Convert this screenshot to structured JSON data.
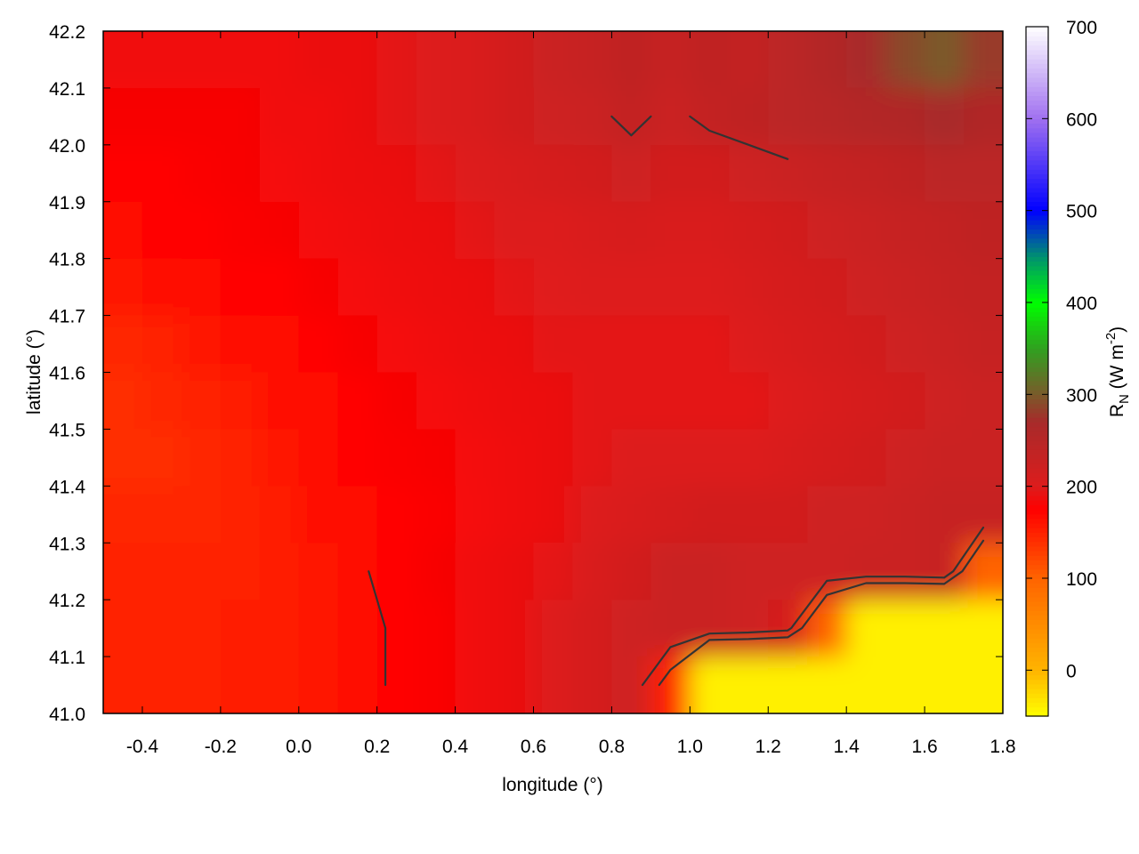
{
  "chart_data": {
    "type": "heatmap",
    "title": "",
    "xlabel": "longitude (°)",
    "ylabel": "latitude (°)",
    "xlim": [
      -0.5,
      1.8
    ],
    "ylim": [
      41.0,
      42.2
    ],
    "xticks": [
      "-0.4",
      "-0.2",
      "0.0",
      "0.2",
      "0.4",
      "0.6",
      "0.8",
      "1.0",
      "1.2",
      "1.4",
      "1.6",
      "1.8"
    ],
    "yticks": [
      "41.0",
      "41.1",
      "41.2",
      "41.3",
      "41.4",
      "41.5",
      "41.6",
      "41.7",
      "41.8",
      "41.9",
      "42.0",
      "42.1",
      "42.2"
    ],
    "colorbar": {
      "label_main": "R",
      "label_sub": "N",
      "label_unit": " (W m",
      "label_sup": "-2",
      "label_close": ")",
      "range": [
        -50,
        700
      ],
      "ticks": [
        "0",
        "100",
        "200",
        "300",
        "400",
        "500",
        "600",
        "700"
      ],
      "colormap": [
        [
          -50,
          "#ffff00"
        ],
        [
          0,
          "#ffb400"
        ],
        [
          100,
          "#ff6400"
        ],
        [
          175,
          "#ff0000"
        ],
        [
          200,
          "#dd1c1c"
        ],
        [
          270,
          "#a82a2a"
        ],
        [
          300,
          "#7a5a2a"
        ],
        [
          350,
          "#30a020"
        ],
        [
          400,
          "#00ff00"
        ],
        [
          450,
          "#009070"
        ],
        [
          500,
          "#0000ff"
        ],
        [
          600,
          "#a070f0"
        ],
        [
          700,
          "#ffffff"
        ]
      ]
    },
    "grid": false,
    "contour_levels": [
      170,
      200,
      230
    ],
    "lon": [
      -0.45,
      -0.35,
      -0.25,
      -0.15,
      -0.05,
      0.05,
      0.15,
      0.25,
      0.35,
      0.45,
      0.55,
      0.65,
      0.75,
      0.85,
      0.95,
      1.05,
      1.15,
      1.25,
      1.35,
      1.45,
      1.55,
      1.65,
      1.75
    ],
    "lat": [
      42.15,
      42.05,
      41.95,
      41.85,
      41.75,
      41.65,
      41.55,
      41.45,
      41.35,
      41.25,
      41.15,
      41.05
    ],
    "values": [
      [
        185,
        185,
        185,
        185,
        185,
        190,
        190,
        195,
        200,
        205,
        215,
        225,
        230,
        240,
        230,
        240,
        235,
        245,
        255,
        270,
        290,
        300,
        280
      ],
      [
        180,
        180,
        180,
        180,
        185,
        185,
        190,
        195,
        200,
        205,
        215,
        220,
        225,
        235,
        225,
        235,
        240,
        245,
        250,
        255,
        260,
        270,
        260
      ],
      [
        175,
        175,
        178,
        180,
        182,
        185,
        188,
        190,
        195,
        200,
        205,
        210,
        215,
        220,
        215,
        215,
        220,
        225,
        230,
        235,
        240,
        245,
        245
      ],
      [
        170,
        172,
        175,
        178,
        180,
        183,
        185,
        188,
        190,
        195,
        200,
        200,
        205,
        208,
        205,
        205,
        210,
        215,
        220,
        225,
        230,
        235,
        240
      ],
      [
        160,
        165,
        170,
        172,
        175,
        180,
        182,
        185,
        188,
        190,
        195,
        198,
        200,
        200,
        200,
        200,
        205,
        210,
        215,
        220,
        225,
        230,
        235
      ],
      [
        145,
        150,
        160,
        165,
        170,
        175,
        180,
        182,
        185,
        188,
        190,
        195,
        195,
        195,
        195,
        195,
        200,
        205,
        210,
        215,
        220,
        225,
        230
      ],
      [
        140,
        145,
        150,
        155,
        165,
        170,
        175,
        180,
        182,
        185,
        188,
        190,
        195,
        195,
        195,
        195,
        195,
        200,
        205,
        210,
        215,
        220,
        225
      ],
      [
        140,
        140,
        145,
        150,
        160,
        168,
        172,
        178,
        180,
        183,
        186,
        190,
        195,
        200,
        200,
        200,
        200,
        205,
        210,
        215,
        220,
        225,
        225
      ],
      [
        145,
        145,
        145,
        150,
        155,
        165,
        170,
        175,
        178,
        182,
        186,
        190,
        200,
        205,
        210,
        215,
        215,
        215,
        220,
        220,
        225,
        230,
        230
      ],
      [
        150,
        150,
        150,
        150,
        155,
        160,
        168,
        175,
        180,
        185,
        190,
        195,
        205,
        215,
        225,
        225,
        220,
        220,
        220,
        225,
        225,
        230,
        100
      ],
      [
        150,
        150,
        150,
        152,
        155,
        160,
        165,
        172,
        178,
        185,
        190,
        200,
        210,
        220,
        225,
        225,
        220,
        210,
        100,
        -40,
        -40,
        -40,
        -40
      ],
      [
        150,
        150,
        150,
        152,
        155,
        160,
        165,
        172,
        178,
        185,
        190,
        200,
        210,
        220,
        150,
        -40,
        -40,
        -40,
        -40,
        -40,
        -40,
        -40,
        -40
      ]
    ]
  }
}
